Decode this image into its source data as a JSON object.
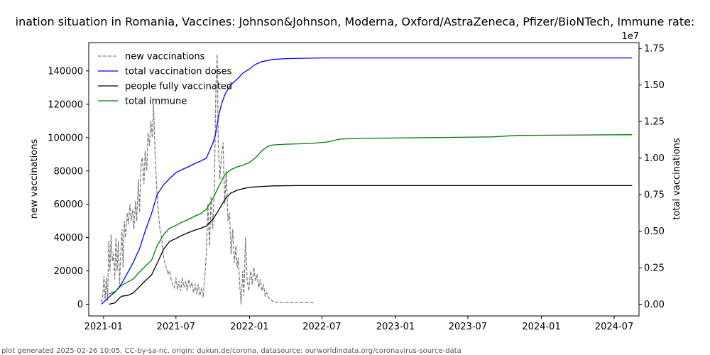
{
  "chart_data": {
    "type": "line",
    "title": "ination situation in Romania, Vaccines: Johnson&Johnson, Moderna, Oxford/AstraZeneca, Pfizer/BioNTech, Immune rate:",
    "ylabel_left": "new vaccinations",
    "ylabel_right": "total vaccinations",
    "right_axis_multiplier": "1e7",
    "footer": "plot generated 2025-02-26 10:05, CC-by-sa-nc, origin: dukun.de/corona, datasource: ourworldindata.org/coronavirus-source-data",
    "x_tick_labels": [
      "2021-01",
      "2021-07",
      "2022-01",
      "2022-07",
      "2023-01",
      "2023-07",
      "2024-01",
      "2024-07"
    ],
    "x_tick_dates": [
      "2021-01-01",
      "2021-07-01",
      "2022-01-01",
      "2022-07-01",
      "2023-01-01",
      "2023-07-01",
      "2024-01-01",
      "2024-07-01"
    ],
    "xlim": [
      "2020-11-25",
      "2024-09-01"
    ],
    "y_left_ticks": [
      0,
      20000,
      40000,
      60000,
      80000,
      100000,
      120000,
      140000
    ],
    "y_left_tick_labels": [
      "0",
      "20000",
      "40000",
      "60000",
      "80000",
      "100000",
      "120000",
      "140000"
    ],
    "y_left_lim": [
      -7000,
      157000
    ],
    "y_right_ticks": [
      0,
      0.25,
      0.5,
      0.75,
      1.0,
      1.25,
      1.5,
      1.75
    ],
    "y_right_tick_labels": [
      "0.00",
      "0.25",
      "0.50",
      "0.75",
      "1.00",
      "1.25",
      "1.50",
      "1.75"
    ],
    "y_right_lim": [
      -0.08,
      1.79
    ],
    "legend_position": "upper left",
    "series": [
      {
        "name": "new vaccinations",
        "axis": "left",
        "color": "#808080",
        "style": "dashed",
        "points": [
          [
            "2020-12-27",
            1000
          ],
          [
            "2020-12-30",
            5000
          ],
          [
            "2021-01-02",
            17000
          ],
          [
            "2021-01-05",
            3000
          ],
          [
            "2021-01-08",
            16000
          ],
          [
            "2021-01-11",
            2000
          ],
          [
            "2021-01-14",
            38000
          ],
          [
            "2021-01-17",
            20000
          ],
          [
            "2021-01-20",
            42000
          ],
          [
            "2021-01-23",
            26000
          ],
          [
            "2021-01-26",
            30000
          ],
          [
            "2021-01-29",
            15000
          ],
          [
            "2021-02-01",
            40000
          ],
          [
            "2021-02-04",
            20000
          ],
          [
            "2021-02-07",
            38000
          ],
          [
            "2021-02-10",
            12000
          ],
          [
            "2021-02-13",
            30000
          ],
          [
            "2021-02-16",
            45000
          ],
          [
            "2021-02-19",
            22000
          ],
          [
            "2021-02-22",
            50000
          ],
          [
            "2021-02-25",
            40000
          ],
          [
            "2021-03-01",
            55000
          ],
          [
            "2021-03-04",
            48000
          ],
          [
            "2021-03-08",
            60000
          ],
          [
            "2021-03-11",
            50000
          ],
          [
            "2021-03-15",
            57000
          ],
          [
            "2021-03-18",
            45000
          ],
          [
            "2021-03-22",
            62000
          ],
          [
            "2021-03-25",
            50000
          ],
          [
            "2021-03-29",
            75000
          ],
          [
            "2021-04-01",
            55000
          ],
          [
            "2021-04-05",
            85000
          ],
          [
            "2021-04-08",
            88000
          ],
          [
            "2021-04-12",
            72000
          ],
          [
            "2021-04-15",
            92000
          ],
          [
            "2021-04-19",
            80000
          ],
          [
            "2021-04-22",
            103000
          ],
          [
            "2021-04-26",
            95000
          ],
          [
            "2021-04-29",
            110000
          ],
          [
            "2021-05-03",
            100000
          ],
          [
            "2021-05-06",
            120000
          ],
          [
            "2021-05-10",
            90000
          ],
          [
            "2021-05-14",
            70000
          ],
          [
            "2021-05-18",
            55000
          ],
          [
            "2021-05-22",
            45000
          ],
          [
            "2021-05-26",
            40000
          ],
          [
            "2021-05-30",
            30000
          ],
          [
            "2021-06-03",
            25000
          ],
          [
            "2021-06-07",
            22000
          ],
          [
            "2021-06-11",
            18000
          ],
          [
            "2021-06-15",
            20000
          ],
          [
            "2021-06-19",
            15000
          ],
          [
            "2021-06-23",
            12000
          ],
          [
            "2021-06-27",
            10000
          ],
          [
            "2021-07-01",
            16000
          ],
          [
            "2021-07-05",
            9000
          ],
          [
            "2021-07-09",
            14000
          ],
          [
            "2021-07-13",
            8000
          ],
          [
            "2021-07-17",
            16000
          ],
          [
            "2021-07-21",
            10000
          ],
          [
            "2021-07-25",
            14000
          ],
          [
            "2021-07-29",
            8000
          ],
          [
            "2021-08-02",
            15000
          ],
          [
            "2021-08-06",
            10000
          ],
          [
            "2021-08-10",
            13000
          ],
          [
            "2021-08-14",
            7000
          ],
          [
            "2021-08-18",
            12000
          ],
          [
            "2021-08-22",
            6000
          ],
          [
            "2021-08-26",
            12000
          ],
          [
            "2021-08-30",
            5000
          ],
          [
            "2021-09-03",
            10000
          ],
          [
            "2021-09-07",
            4000
          ],
          [
            "2021-09-11",
            16000
          ],
          [
            "2021-09-15",
            30000
          ],
          [
            "2021-09-19",
            60000
          ],
          [
            "2021-09-23",
            35000
          ],
          [
            "2021-09-27",
            65000
          ],
          [
            "2021-10-01",
            45000
          ],
          [
            "2021-10-05",
            70000
          ],
          [
            "2021-10-09",
            130000
          ],
          [
            "2021-10-12",
            150000
          ],
          [
            "2021-10-15",
            95000
          ],
          [
            "2021-10-19",
            75000
          ],
          [
            "2021-10-23",
            90000
          ],
          [
            "2021-10-27",
            97000
          ],
          [
            "2021-10-31",
            60000
          ],
          [
            "2021-11-04",
            80000
          ],
          [
            "2021-11-08",
            50000
          ],
          [
            "2021-11-12",
            55000
          ],
          [
            "2021-11-16",
            30000
          ],
          [
            "2021-11-20",
            45000
          ],
          [
            "2021-11-24",
            25000
          ],
          [
            "2021-11-28",
            35000
          ],
          [
            "2021-12-01",
            22000
          ],
          [
            "2021-12-04",
            28000
          ],
          [
            "2021-12-08",
            10000
          ],
          [
            "2021-12-11",
            0
          ],
          [
            "2021-12-15",
            20000
          ],
          [
            "2021-12-18",
            5000
          ],
          [
            "2021-12-22",
            40000
          ],
          [
            "2021-12-26",
            15000
          ],
          [
            "2021-12-30",
            8000
          ],
          [
            "2022-01-04",
            20000
          ],
          [
            "2022-01-08",
            12000
          ],
          [
            "2022-01-12",
            22000
          ],
          [
            "2022-01-16",
            14000
          ],
          [
            "2022-01-20",
            18000
          ],
          [
            "2022-01-24",
            10000
          ],
          [
            "2022-01-28",
            15000
          ],
          [
            "2022-02-01",
            8000
          ],
          [
            "2022-02-05",
            12000
          ],
          [
            "2022-02-09",
            5000
          ],
          [
            "2022-02-13",
            7000
          ],
          [
            "2022-02-18",
            4000
          ],
          [
            "2022-02-23",
            3000
          ],
          [
            "2022-03-01",
            1500
          ],
          [
            "2022-03-10",
            1200
          ],
          [
            "2022-04-01",
            1000
          ],
          [
            "2022-05-01",
            1000
          ],
          [
            "2022-06-10",
            1000
          ]
        ]
      },
      {
        "name": "total vaccination doses",
        "axis": "right",
        "color": "#0000ff",
        "style": "solid",
        "points": [
          [
            "2020-12-27",
            0.0
          ],
          [
            "2021-01-15",
            0.05
          ],
          [
            "2021-02-01",
            0.09
          ],
          [
            "2021-02-15",
            0.14
          ],
          [
            "2021-03-01",
            0.21
          ],
          [
            "2021-03-15",
            0.28
          ],
          [
            "2021-04-01",
            0.38
          ],
          [
            "2021-04-15",
            0.5
          ],
          [
            "2021-05-01",
            0.62
          ],
          [
            "2021-05-15",
            0.75
          ],
          [
            "2021-06-01",
            0.82
          ],
          [
            "2021-06-15",
            0.86
          ],
          [
            "2021-07-01",
            0.9
          ],
          [
            "2021-07-15",
            0.92
          ],
          [
            "2021-08-01",
            0.94
          ],
          [
            "2021-08-15",
            0.96
          ],
          [
            "2021-09-01",
            0.98
          ],
          [
            "2021-09-15",
            1.0
          ],
          [
            "2021-10-01",
            1.1
          ],
          [
            "2021-10-08",
            1.16
          ],
          [
            "2021-10-15",
            1.28
          ],
          [
            "2021-10-22",
            1.36
          ],
          [
            "2021-11-01",
            1.44
          ],
          [
            "2021-11-15",
            1.5
          ],
          [
            "2021-12-01",
            1.54
          ],
          [
            "2021-12-15",
            1.58
          ],
          [
            "2022-01-01",
            1.61
          ],
          [
            "2022-01-15",
            1.64
          ],
          [
            "2022-02-01",
            1.66
          ],
          [
            "2022-03-01",
            1.675
          ],
          [
            "2022-04-01",
            1.68
          ],
          [
            "2022-07-01",
            1.685
          ],
          [
            "2024-08-15",
            1.685
          ]
        ]
      },
      {
        "name": "people fully vaccinated",
        "axis": "right",
        "color": "#000000",
        "style": "solid",
        "points": [
          [
            "2021-01-15",
            0.0
          ],
          [
            "2021-01-30",
            0.01
          ],
          [
            "2021-02-05",
            0.03
          ],
          [
            "2021-02-15",
            0.055
          ],
          [
            "2021-03-01",
            0.06
          ],
          [
            "2021-03-15",
            0.075
          ],
          [
            "2021-04-01",
            0.12
          ],
          [
            "2021-04-15",
            0.16
          ],
          [
            "2021-05-01",
            0.2
          ],
          [
            "2021-05-15",
            0.28
          ],
          [
            "2021-06-01",
            0.38
          ],
          [
            "2021-06-15",
            0.43
          ],
          [
            "2021-07-01",
            0.45
          ],
          [
            "2021-07-15",
            0.47
          ],
          [
            "2021-08-01",
            0.49
          ],
          [
            "2021-08-15",
            0.505
          ],
          [
            "2021-09-01",
            0.52
          ],
          [
            "2021-09-15",
            0.535
          ],
          [
            "2021-10-01",
            0.58
          ],
          [
            "2021-10-15",
            0.64
          ],
          [
            "2021-11-01",
            0.72
          ],
          [
            "2021-11-15",
            0.76
          ],
          [
            "2021-12-01",
            0.78
          ],
          [
            "2021-12-15",
            0.79
          ],
          [
            "2022-01-01",
            0.8
          ],
          [
            "2022-02-01",
            0.806
          ],
          [
            "2022-03-01",
            0.81
          ],
          [
            "2022-05-01",
            0.812
          ],
          [
            "2024-08-15",
            0.812
          ]
        ]
      },
      {
        "name": "total immune",
        "axis": "right",
        "color": "#008000",
        "style": "solid",
        "points": [
          [
            "2021-01-15",
            0.07
          ],
          [
            "2021-02-01",
            0.09
          ],
          [
            "2021-02-15",
            0.13
          ],
          [
            "2021-03-01",
            0.15
          ],
          [
            "2021-03-15",
            0.17
          ],
          [
            "2021-04-01",
            0.22
          ],
          [
            "2021-04-15",
            0.26
          ],
          [
            "2021-05-01",
            0.3
          ],
          [
            "2021-05-15",
            0.4
          ],
          [
            "2021-06-01",
            0.48
          ],
          [
            "2021-06-15",
            0.52
          ],
          [
            "2021-07-01",
            0.54
          ],
          [
            "2021-07-15",
            0.56
          ],
          [
            "2021-08-01",
            0.58
          ],
          [
            "2021-08-15",
            0.6
          ],
          [
            "2021-09-01",
            0.62
          ],
          [
            "2021-09-15",
            0.65
          ],
          [
            "2021-10-01",
            0.72
          ],
          [
            "2021-10-15",
            0.8
          ],
          [
            "2021-11-01",
            0.89
          ],
          [
            "2021-11-15",
            0.92
          ],
          [
            "2021-12-01",
            0.94
          ],
          [
            "2021-12-15",
            0.95
          ],
          [
            "2022-01-01",
            0.97
          ],
          [
            "2022-01-15",
            1.0
          ],
          [
            "2022-02-01",
            1.05
          ],
          [
            "2022-02-15",
            1.08
          ],
          [
            "2022-03-01",
            1.09
          ],
          [
            "2022-04-01",
            1.095
          ],
          [
            "2022-06-01",
            1.1
          ],
          [
            "2022-07-15",
            1.11
          ],
          [
            "2022-08-15",
            1.13
          ],
          [
            "2022-10-01",
            1.135
          ],
          [
            "2023-04-01",
            1.14
          ],
          [
            "2023-09-01",
            1.145
          ],
          [
            "2023-11-01",
            1.155
          ],
          [
            "2024-08-15",
            1.16
          ]
        ]
      }
    ]
  }
}
